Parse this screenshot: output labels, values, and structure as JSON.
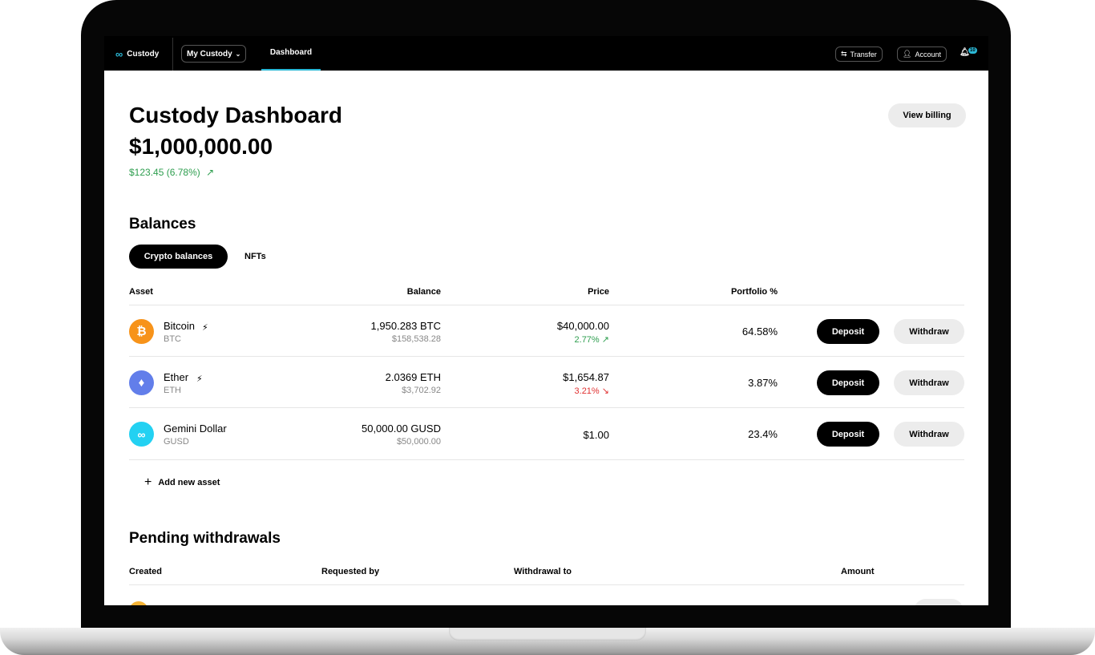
{
  "nav": {
    "brand": "Custody",
    "account_switcher": "My Custody",
    "tab": "Dashboard",
    "transfer": "Transfer",
    "account": "Account",
    "notifications": "10",
    "accent": "#2bb8d6"
  },
  "header": {
    "title": "Custody Dashboard",
    "total": "$1,000,000.00",
    "change": "$123.45 (6.78%)",
    "view_billing": "View billing"
  },
  "balances": {
    "title": "Balances",
    "tabs": [
      "Crypto balances",
      "NFTs"
    ],
    "columns": {
      "asset": "Asset",
      "balance": "Balance",
      "price": "Price",
      "portfolio": "Portfolio %"
    },
    "rows": [
      {
        "name": "Bitcoin",
        "symbol": "BTC",
        "balance": "1,950.283 BTC",
        "value": "$158,538.28",
        "price": "$40,000.00",
        "change": "2.77%",
        "direction": "up",
        "portfolio": "64.58%",
        "color": "#f7931a",
        "icon": "bitcoin-icon"
      },
      {
        "name": "Ether",
        "symbol": "ETH",
        "balance": "2.0369 ETH",
        "value": "$3,702.92",
        "price": "$1,654.87",
        "change": "3.21%",
        "direction": "down",
        "portfolio": "3.87%",
        "color": "#627eea",
        "icon": "ether-icon"
      },
      {
        "name": "Gemini Dollar",
        "symbol": "GUSD",
        "balance": "50,000.00 GUSD",
        "value": "$50,000.00",
        "price": "$1.00",
        "portfolio": "23.4%",
        "color": "#23d1f2",
        "icon": "gemini-dollar-icon"
      }
    ],
    "deposit": "Deposit",
    "withdraw": "Withdraw",
    "add_asset": "Add new asset"
  },
  "pending": {
    "title": "Pending withdrawals",
    "columns": {
      "created": "Created",
      "requested_by": "Requested by",
      "withdrawal_to": "Withdrawal to",
      "amount": "Amount"
    }
  },
  "colors": {
    "positive": "#2e9e4f",
    "negative": "#e03131"
  }
}
